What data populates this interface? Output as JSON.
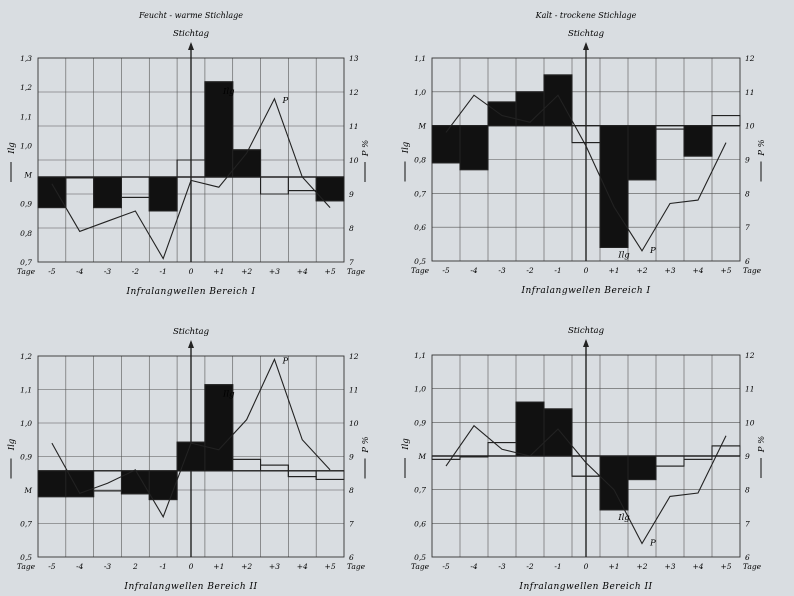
{
  "chart_data": [
    {
      "type": "line",
      "title": "Feucht - warme   Stichlage",
      "marker_label": "Stichtag",
      "xlabel": "Infralangwellen   Bereich I",
      "x_unit_label": "Tage",
      "left_axis_label": "Ilg",
      "right_axis_label": "P %",
      "xlim": [
        -5.5,
        5.5
      ],
      "ylim_left": [
        0.7,
        1.3
      ],
      "ylim_right": [
        7,
        13
      ],
      "y_ticks_left": [
        "0,7",
        "0,8",
        "0,9",
        "M",
        "1,0",
        "1,1",
        "1,2",
        "1,3"
      ],
      "y_ticks_right": [
        "7",
        "8",
        "9",
        "10",
        "11",
        "12",
        "13"
      ],
      "x_ticks": [
        "-5",
        "-4",
        "-3",
        "-2",
        "-1",
        "0",
        "+1",
        "+2",
        "+3",
        "+4",
        "+5"
      ],
      "mean_value": 0.95,
      "series": [
        {
          "name": "Ilg",
          "x": [
            -5,
            -4,
            -3,
            -2,
            -1,
            0,
            1,
            2,
            3,
            4,
            5
          ],
          "values": [
            0.86,
            0.95,
            0.86,
            0.89,
            0.85,
            1.0,
            1.23,
            1.03,
            0.9,
            0.91,
            0.88
          ]
        },
        {
          "name": "P",
          "x": [
            -5,
            -4,
            -3,
            -2,
            -1,
            0,
            1,
            2,
            3,
            4,
            5
          ],
          "values": [
            9.3,
            7.9,
            8.2,
            8.5,
            7.1,
            9.4,
            9.2,
            10.2,
            11.8,
            9.5,
            8.6
          ]
        }
      ]
    },
    {
      "type": "line",
      "title": "Kalt - trockene   Stichlage",
      "marker_label": "Stichtag",
      "xlabel": "Infralangwellen   Bereich I",
      "x_unit_label": "Tage",
      "left_axis_label": "Ilg",
      "right_axis_label": "P %",
      "xlim": [
        -5.5,
        5.5
      ],
      "ylim_left": [
        0.5,
        1.1
      ],
      "ylim_right": [
        6,
        12
      ],
      "y_ticks_left": [
        "0,5",
        "0,6",
        "0,7",
        "0,8",
        "M",
        "1,0",
        "1,1"
      ],
      "y_ticks_right": [
        "6",
        "7",
        "8",
        "9",
        "10",
        "11",
        "12"
      ],
      "x_ticks": [
        "-5",
        "-4",
        "-3",
        "-2",
        "-1",
        "0",
        "+1",
        "+2",
        "+3",
        "+4",
        "+5"
      ],
      "mean_value": 0.9,
      "series": [
        {
          "name": "Ilg",
          "x": [
            -5,
            -4,
            -3,
            -2,
            -1,
            0,
            1,
            2,
            3,
            4,
            5
          ],
          "values": [
            0.79,
            0.77,
            0.97,
            1.0,
            1.05,
            0.85,
            0.54,
            0.74,
            0.89,
            0.81,
            0.93
          ]
        },
        {
          "name": "P",
          "x": [
            -5,
            -4,
            -3,
            -2,
            -1,
            0,
            1,
            2,
            3,
            4,
            5
          ],
          "values": [
            9.8,
            10.9,
            10.3,
            10.1,
            10.9,
            9.4,
            7.6,
            6.3,
            7.7,
            7.8,
            9.5
          ]
        }
      ]
    },
    {
      "type": "line",
      "title": "",
      "marker_label": "Stichtag",
      "xlabel": "Infralangwellen   Bereich II",
      "x_unit_label": "Tage",
      "left_axis_label": "Ilg",
      "right_axis_label": "P %",
      "xlim": [
        -5.5,
        5.5
      ],
      "ylim_left": [
        0.5,
        1.2
      ],
      "ylim_right": [
        6,
        12
      ],
      "y_ticks_left": [
        "0,5",
        "0,7",
        "M",
        "0,9",
        "1,0",
        "1,1",
        "1,2"
      ],
      "y_ticks_right": [
        "6",
        "7",
        "8",
        "9",
        "10",
        "11",
        "12"
      ],
      "x_ticks": [
        "-5",
        "-4",
        "-3",
        "2",
        "-1",
        "0",
        "+1",
        "+2",
        "+3",
        "+4",
        "+5"
      ],
      "mean_value": 0.8,
      "series": [
        {
          "name": "Ilg",
          "x": [
            -5,
            -4,
            -3,
            -2,
            -1,
            0,
            1,
            2,
            3,
            4,
            5
          ],
          "values": [
            0.71,
            0.71,
            0.73,
            0.72,
            0.7,
            0.9,
            1.1,
            0.84,
            0.82,
            0.78,
            0.77
          ]
        },
        {
          "name": "P",
          "x": [
            -5,
            -4,
            -3,
            -2,
            -1,
            0,
            1,
            2,
            3,
            4,
            5
          ],
          "values": [
            9.4,
            7.9,
            8.2,
            8.6,
            7.2,
            9.4,
            9.2,
            10.1,
            11.9,
            9.5,
            8.6
          ]
        }
      ]
    },
    {
      "type": "line",
      "title": "",
      "marker_label": "Stichtag",
      "xlabel": "Infralangwellen   Bereich II",
      "x_unit_label": "Tage",
      "left_axis_label": "Ilg",
      "right_axis_label": "P %",
      "xlim": [
        -5.5,
        5.5
      ],
      "ylim_left": [
        0.5,
        1.1
      ],
      "ylim_right": [
        6,
        12
      ],
      "y_ticks_left": [
        "0,5",
        "0,6",
        "0,7",
        "M",
        "0,9",
        "1,0",
        "1,1"
      ],
      "y_ticks_right": [
        "6",
        "7",
        "8",
        "9",
        "10",
        "11",
        "12"
      ],
      "x_ticks": [
        "-5",
        "-4",
        "-3",
        "-2",
        "-1",
        "0",
        "+1",
        "+2",
        "+3",
        "+4",
        "+5"
      ],
      "mean_value": 0.8,
      "series": [
        {
          "name": "Ilg",
          "x": [
            -5,
            -4,
            -3,
            -2,
            -1,
            0,
            1,
            2,
            3,
            4,
            5
          ],
          "values": [
            0.79,
            0.8,
            0.84,
            0.96,
            0.94,
            0.74,
            0.64,
            0.73,
            0.77,
            0.79,
            0.83
          ]
        },
        {
          "name": "P",
          "x": [
            -5,
            -4,
            -3,
            -2,
            -1,
            0,
            1,
            2,
            3,
            4,
            5
          ],
          "values": [
            8.7,
            9.9,
            9.2,
            9.0,
            9.8,
            8.8,
            8.0,
            6.4,
            7.8,
            7.9,
            9.6
          ]
        }
      ]
    }
  ]
}
